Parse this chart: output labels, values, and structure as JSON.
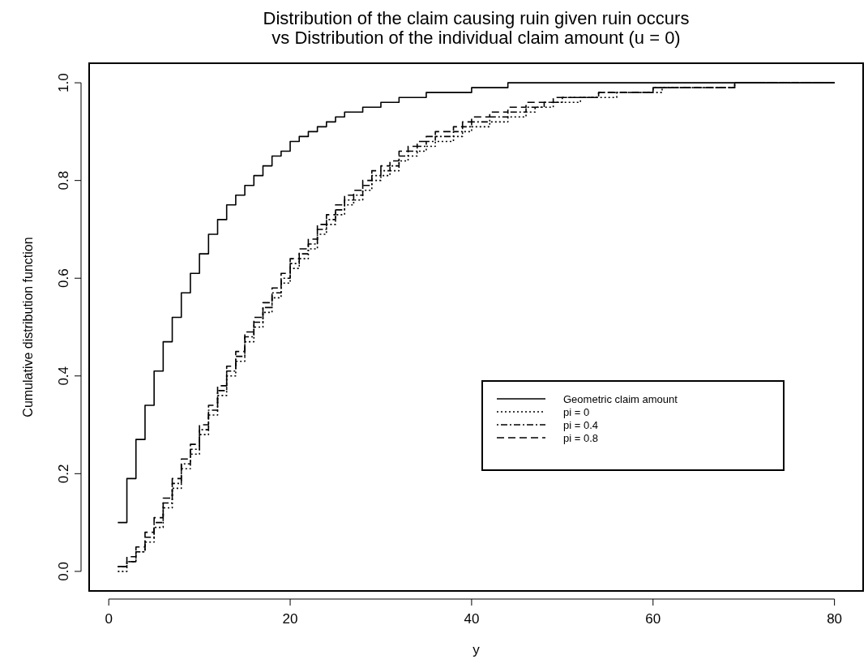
{
  "chart_data": {
    "type": "step",
    "title": "Distribution of the claim causing ruin given ruin occurs\nvs Distribution of the individual claim amount (u = 0)",
    "xlabel": "y",
    "ylabel": "Cumulative distribution function",
    "x": [
      1,
      2,
      3,
      4,
      5,
      6,
      7,
      8,
      9,
      10,
      11,
      12,
      13,
      14,
      15,
      16,
      17,
      18,
      19,
      20,
      21,
      22,
      23,
      24,
      25,
      26,
      27,
      28,
      29,
      30,
      31,
      32,
      33,
      34,
      35,
      36,
      37,
      38,
      39,
      40,
      41,
      42,
      43,
      44,
      45,
      46,
      47,
      48,
      49,
      50,
      51,
      52,
      53,
      54,
      55,
      56,
      57,
      58,
      59,
      60,
      61,
      62,
      63,
      64,
      65,
      66,
      67,
      68,
      69,
      70,
      71,
      72,
      73,
      74,
      75,
      76,
      77,
      78,
      79,
      80
    ],
    "series": [
      {
        "name": "Geometric claim amount",
        "color": "#000000",
        "line_style": "solid",
        "values": [
          0.1,
          0.19,
          0.27,
          0.34,
          0.41,
          0.47,
          0.52,
          0.57,
          0.61,
          0.65,
          0.69,
          0.72,
          0.75,
          0.77,
          0.79,
          0.81,
          0.83,
          0.85,
          0.86,
          0.88,
          0.89,
          0.9,
          0.91,
          0.92,
          0.93,
          0.94,
          0.94,
          0.95,
          0.95,
          0.96,
          0.96,
          0.97,
          0.97,
          0.97,
          0.98,
          0.98,
          0.98,
          0.98,
          0.98,
          0.99,
          0.99,
          0.99,
          0.99,
          1.0,
          1.0,
          1.0,
          1.0,
          1.0,
          1.0,
          1.0,
          1.0,
          1.0,
          1.0,
          1.0,
          1.0,
          1.0,
          1.0,
          1.0,
          1.0,
          1.0,
          1.0,
          1.0,
          1.0,
          1.0,
          1.0,
          1.0,
          1.0,
          1.0,
          1.0,
          1.0,
          1.0,
          1.0,
          1.0,
          1.0,
          1.0,
          1.0,
          1.0,
          1.0,
          1.0,
          1.0
        ]
      },
      {
        "name": "pi = 0",
        "color": "#000000",
        "line_style": "dotted",
        "values": [
          0.0,
          0.02,
          0.04,
          0.06,
          0.09,
          0.13,
          0.17,
          0.21,
          0.24,
          0.28,
          0.32,
          0.36,
          0.4,
          0.43,
          0.47,
          0.5,
          0.53,
          0.56,
          0.59,
          0.62,
          0.64,
          0.66,
          0.69,
          0.71,
          0.73,
          0.75,
          0.76,
          0.78,
          0.8,
          0.81,
          0.82,
          0.84,
          0.85,
          0.86,
          0.87,
          0.88,
          0.88,
          0.89,
          0.9,
          0.91,
          0.91,
          0.92,
          0.92,
          0.93,
          0.93,
          0.94,
          0.95,
          0.95,
          0.96,
          0.96,
          0.96,
          0.97,
          0.97,
          0.97,
          0.97,
          0.98,
          0.98,
          0.98,
          0.98,
          0.98,
          0.99,
          0.99,
          0.99,
          0.99,
          0.99,
          0.99,
          0.99,
          0.99,
          1.0,
          1.0,
          1.0,
          1.0,
          1.0,
          1.0,
          1.0,
          1.0,
          1.0,
          1.0,
          1.0,
          1.0
        ]
      },
      {
        "name": "pi = 0.4",
        "color": "#000000",
        "line_style": "dashdot",
        "values": [
          0.01,
          0.02,
          0.04,
          0.07,
          0.1,
          0.14,
          0.18,
          0.22,
          0.25,
          0.29,
          0.33,
          0.37,
          0.41,
          0.44,
          0.48,
          0.51,
          0.54,
          0.57,
          0.6,
          0.63,
          0.65,
          0.67,
          0.7,
          0.72,
          0.74,
          0.76,
          0.77,
          0.79,
          0.81,
          0.82,
          0.83,
          0.85,
          0.86,
          0.87,
          0.88,
          0.89,
          0.89,
          0.9,
          0.91,
          0.92,
          0.92,
          0.93,
          0.93,
          0.94,
          0.94,
          0.95,
          0.95,
          0.96,
          0.96,
          0.97,
          0.97,
          0.97,
          0.97,
          0.98,
          0.98,
          0.98,
          0.98,
          0.98,
          0.98,
          0.99,
          0.99,
          0.99,
          0.99,
          0.99,
          0.99,
          0.99,
          0.99,
          0.99,
          1.0,
          1.0,
          1.0,
          1.0,
          1.0,
          1.0,
          1.0,
          1.0,
          1.0,
          1.0,
          1.0,
          1.0
        ]
      },
      {
        "name": "pi = 0.8",
        "color": "#000000",
        "line_style": "dashed",
        "values": [
          0.01,
          0.03,
          0.05,
          0.08,
          0.11,
          0.15,
          0.19,
          0.23,
          0.26,
          0.3,
          0.34,
          0.38,
          0.42,
          0.45,
          0.49,
          0.52,
          0.55,
          0.58,
          0.61,
          0.64,
          0.66,
          0.68,
          0.71,
          0.73,
          0.75,
          0.77,
          0.78,
          0.8,
          0.82,
          0.83,
          0.84,
          0.86,
          0.87,
          0.88,
          0.89,
          0.9,
          0.9,
          0.91,
          0.92,
          0.93,
          0.93,
          0.94,
          0.94,
          0.95,
          0.95,
          0.96,
          0.96,
          0.96,
          0.97,
          0.97,
          0.97,
          0.97,
          0.97,
          0.98,
          0.98,
          0.98,
          0.98,
          0.98,
          0.98,
          0.99,
          0.99,
          0.99,
          0.99,
          0.99,
          0.99,
          0.99,
          0.99,
          0.99,
          1.0,
          1.0,
          1.0,
          1.0,
          1.0,
          1.0,
          1.0,
          1.0,
          1.0,
          1.0,
          1.0,
          1.0
        ]
      }
    ],
    "xlim": [
      -2.16,
      83.16
    ],
    "xticks": [
      0,
      20,
      40,
      60,
      80
    ],
    "ylim": [
      -0.04,
      1.04
    ],
    "yticks": [
      {
        "value": 0,
        "label": "0.0"
      },
      {
        "value": 0.2,
        "label": "0.2"
      },
      {
        "value": 0.4,
        "label": "0.4"
      },
      {
        "value": 0.6,
        "label": "0.6"
      },
      {
        "value": 0.8,
        "label": "0.8"
      },
      {
        "value": 1,
        "label": "1.0"
      }
    ],
    "legend": "right",
    "grid": false
  }
}
